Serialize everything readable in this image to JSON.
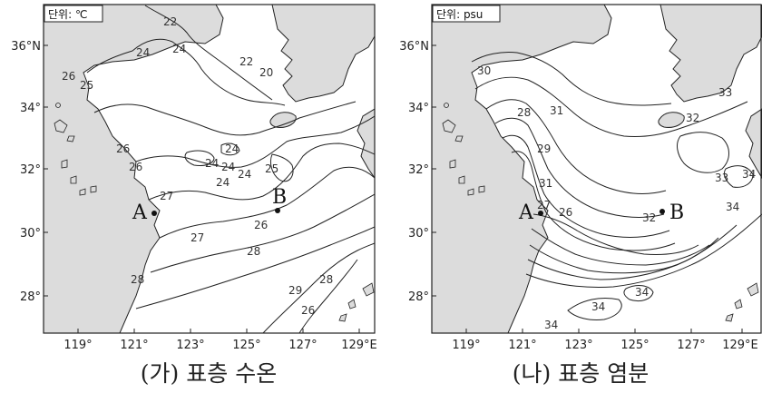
{
  "panels": [
    {
      "unit_label": "단위: ℃",
      "caption": "(가) 표층 수온",
      "lat_ticks": [
        "36°N",
        "34°",
        "32°",
        "30°",
        "28°"
      ],
      "lon_ticks": [
        "119°",
        "121°",
        "123°",
        "125°",
        "127°",
        "129°E"
      ],
      "contour_labels": [
        "22",
        "24",
        "22",
        "20",
        "26",
        "25",
        "24",
        "26",
        "24",
        "24",
        "24",
        "24",
        "24",
        "26",
        "27",
        "25",
        "26",
        "27",
        "28",
        "29",
        "26",
        "28",
        "28"
      ],
      "points": [
        "A",
        "B"
      ]
    },
    {
      "unit_label": "단위: psu",
      "caption": "(나) 표층 염분",
      "lat_ticks": [
        "36°N",
        "34°",
        "32°",
        "30°",
        "28°"
      ],
      "lon_ticks": [
        "119°",
        "121°",
        "123°",
        "125°",
        "127°",
        "129°E"
      ],
      "contour_labels": [
        "30",
        "31",
        "28",
        "33",
        "32",
        "29",
        "31",
        "27",
        "26",
        "32",
        "33",
        "34",
        "34",
        "34",
        "34",
        "34"
      ],
      "points": [
        "A",
        "B"
      ]
    }
  ],
  "colors": {
    "land": "#dcdcdc",
    "line": "#222222",
    "sea": "#ffffff"
  }
}
